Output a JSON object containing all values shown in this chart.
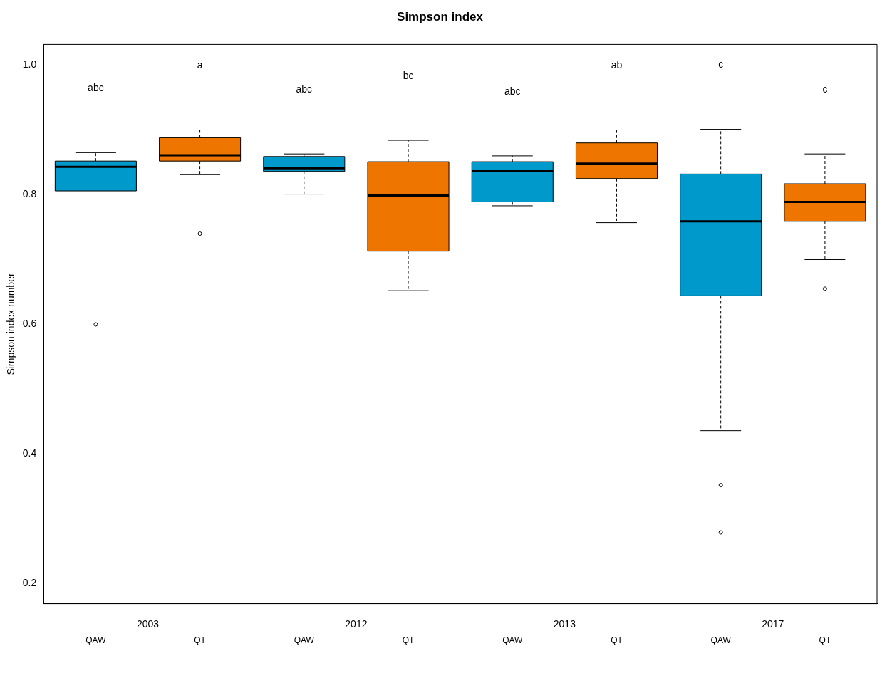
{
  "chart_data": {
    "type": "box",
    "title": "Simpson index",
    "ylabel": "Simpson index number",
    "categories": [
      "QAW",
      "QT",
      "QAW",
      "QT",
      "QAW",
      "QT",
      "QAW",
      "QT"
    ],
    "colors": [
      "#0099cc",
      "#ee7600",
      "#0099cc",
      "#ee7600",
      "#0099cc",
      "#ee7600",
      "#0099cc",
      "#ee7600"
    ],
    "boxes": [
      {
        "low": 0.806,
        "q1": 0.806,
        "median": 0.843,
        "q3": 0.852,
        "high": 0.865,
        "outliers": [
          0.6
        ]
      },
      {
        "low": 0.831,
        "q1": 0.852,
        "median": 0.861,
        "q3": 0.888,
        "high": 0.9,
        "outliers": [
          0.74
        ]
      },
      {
        "low": 0.801,
        "q1": 0.836,
        "median": 0.841,
        "q3": 0.859,
        "high": 0.863
      },
      {
        "low": 0.652,
        "q1": 0.713,
        "median": 0.799,
        "q3": 0.851,
        "high": 0.884
      },
      {
        "low": 0.783,
        "q1": 0.789,
        "median": 0.837,
        "q3": 0.851,
        "high": 0.86
      },
      {
        "low": 0.757,
        "q1": 0.825,
        "median": 0.848,
        "q3": 0.88,
        "high": 0.9
      },
      {
        "low": 0.436,
        "q1": 0.644,
        "median": 0.759,
        "q3": 0.832,
        "high": 0.901,
        "outliers": [
          0.352,
          0.279
        ]
      },
      {
        "low": 0.7,
        "q1": 0.759,
        "median": 0.789,
        "q3": 0.817,
        "high": 0.863,
        "outliers": [
          0.655
        ]
      }
    ],
    "ylim": [
      0.169,
      1.032
    ],
    "yticks": [
      0.2,
      0.4,
      0.6,
      0.8,
      {
        "value": 1,
        "label": "1.0"
      }
    ],
    "grid": false,
    "legend": false,
    "annotations": [
      "abc",
      "a",
      "abc",
      "bc",
      "abc",
      "ab",
      "c",
      "c",
      "2003",
      "2012",
      "2013",
      "2017"
    ]
  }
}
